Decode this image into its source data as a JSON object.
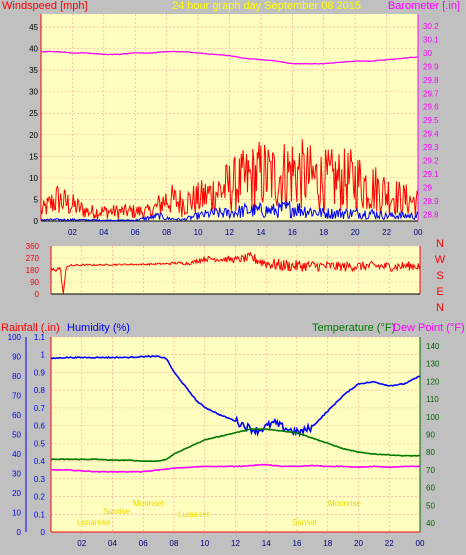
{
  "chart_data": [
    {
      "type": "line",
      "title": "24 hour graph day   September 08 2015",
      "y_left_label": "Windspeed [mph]",
      "y_right_label": "Barometer [.in]",
      "x_ticks": [
        "02",
        "04",
        "06",
        "08",
        "10",
        "12",
        "14",
        "16",
        "18",
        "20",
        "22",
        "00"
      ],
      "y_left_ticks": [
        "0",
        "5",
        "10",
        "15",
        "20",
        "25",
        "30",
        "35",
        "40",
        "45"
      ],
      "y_right_ticks": [
        "28.8",
        "28.9",
        "29",
        "29.1",
        "29.2",
        "29.3",
        "29.4",
        "29.5",
        "29.6",
        "29.7",
        "29.8",
        "29.9",
        "30",
        "30.1",
        "30.2"
      ],
      "x_range": [
        0,
        24
      ],
      "y_left_range": [
        0,
        48
      ],
      "y_right_range": [
        28.75,
        30.29
      ],
      "series": [
        {
          "axis": "left",
          "color": "#ff0000",
          "style": "noisy",
          "keyframes_x": [
            0,
            1,
            2,
            3,
            4,
            5,
            6,
            7,
            7.5,
            8,
            9,
            10,
            11,
            12,
            13,
            14,
            15,
            16,
            17,
            18,
            19,
            20,
            21,
            22,
            23,
            24
          ],
          "keyframes_amp": [
            3,
            7,
            5,
            3,
            3,
            3,
            3,
            3,
            5,
            7,
            6,
            7,
            9,
            11,
            13,
            15,
            14,
            16,
            14,
            13,
            13,
            13,
            11,
            9,
            7,
            6
          ]
        },
        {
          "axis": "left",
          "color": "#0000ff",
          "style": "noisy",
          "keyframes_x": [
            0,
            2,
            4,
            6,
            7.5,
            8,
            9,
            10,
            11,
            12,
            13,
            14,
            15,
            16,
            17,
            18,
            19,
            20,
            21,
            22,
            23,
            24
          ],
          "keyframes_amp": [
            0.5,
            0.5,
            0.3,
            0.3,
            2,
            1,
            0.5,
            2,
            3,
            3,
            4,
            4,
            4,
            5,
            4,
            3,
            3,
            3,
            3,
            2,
            2,
            2
          ]
        },
        {
          "axis": "right",
          "color": "#ff00ff",
          "style": "smooth",
          "x": [
            0,
            1,
            2,
            3,
            4,
            5,
            6,
            7,
            8,
            9,
            10,
            11,
            12,
            13,
            14,
            15,
            16,
            17,
            18,
            19,
            20,
            21,
            22,
            23,
            24
          ],
          "y": [
            30.01,
            30.01,
            30.0,
            30.0,
            29.99,
            29.99,
            30.0,
            30.0,
            30.01,
            30.01,
            30.0,
            29.99,
            29.98,
            29.96,
            29.95,
            29.94,
            29.92,
            29.92,
            29.92,
            29.93,
            29.94,
            29.94,
            29.95,
            29.96,
            29.97
          ]
        }
      ]
    },
    {
      "type": "line",
      "y_ticks": [
        "360",
        "270",
        "180",
        "90",
        "0"
      ],
      "y_right_labels": [
        "N",
        "W",
        "S",
        "E",
        "N"
      ],
      "x_range": [
        0,
        24
      ],
      "y_range": [
        0,
        360
      ],
      "series": [
        {
          "color": "#ff0000",
          "keyframes_x": [
            0,
            0.3,
            0.6,
            0.8,
            1,
            1.5,
            2,
            3,
            4,
            5,
            6,
            7,
            7.5,
            8,
            9,
            10,
            11,
            12,
            12.5,
            13,
            14,
            15,
            16,
            17,
            18,
            19,
            20,
            21,
            22,
            23,
            24
          ],
          "keyframes_y": [
            175,
            185,
            195,
            0,
            210,
            215,
            218,
            218,
            220,
            222,
            222,
            226,
            226,
            232,
            230,
            265,
            262,
            258,
            265,
            272,
            230,
            215,
            210,
            212,
            208,
            205,
            208,
            210,
            205,
            210,
            212
          ],
          "keyframes_amp": [
            15,
            20,
            10,
            0,
            10,
            8,
            6,
            6,
            6,
            6,
            6,
            6,
            8,
            10,
            12,
            20,
            22,
            25,
            30,
            40,
            45,
            45,
            45,
            40,
            40,
            35,
            35,
            35,
            35,
            35,
            35
          ]
        }
      ]
    },
    {
      "type": "line",
      "y_left_label_1": "Rainfall (.in)",
      "y_left_label_2": "Humidity (%)",
      "y_right_label_1": "Temperature (°F)",
      "y_right_label_2": "Dew Point (°F)",
      "x_ticks": [
        "02",
        "04",
        "06",
        "08",
        "10",
        "12",
        "14",
        "16",
        "18",
        "20",
        "22",
        "00"
      ],
      "y_left_ticks_humidity": [
        "0",
        "10",
        "20",
        "30",
        "40",
        "50",
        "60",
        "70",
        "80",
        "90",
        "100"
      ],
      "y_left_ticks_rain": [
        "0",
        "0.1",
        "0.2",
        "0.3",
        "0.4",
        "0.5",
        "0.6",
        "0.7",
        "0.8",
        "0.9",
        "1",
        "1.1"
      ],
      "y_right_ticks": [
        "40",
        "50",
        "60",
        "70",
        "80",
        "90",
        "100",
        "110",
        "120",
        "130",
        "140"
      ],
      "x_range": [
        0,
        24
      ],
      "humidity_range": [
        0,
        100
      ],
      "rain_range": [
        0,
        1.1
      ],
      "temp_range": [
        35,
        145
      ],
      "annotations": [
        "Lunarrise",
        "Sunrise",
        "Moonset",
        "Lunarset",
        "Sunset",
        "Moonrise"
      ],
      "series": [
        {
          "name": "Humidity (%)",
          "axis": "humidity",
          "color": "#0000ff",
          "x": [
            0,
            1,
            2,
            3,
            4,
            5,
            6,
            7,
            7.5,
            8,
            9,
            9.5,
            10,
            11,
            12,
            13,
            13.5,
            14,
            14.5,
            15,
            16,
            16.5,
            17,
            18,
            19,
            20,
            21,
            22,
            23,
            24
          ],
          "y": [
            89,
            89.5,
            89.5,
            89.5,
            89.5,
            89.5,
            90,
            90,
            89,
            82,
            72,
            67,
            64,
            60,
            57,
            53,
            52,
            54,
            56,
            54,
            51,
            52,
            54,
            62,
            70,
            76,
            77,
            75,
            76,
            80
          ]
        },
        {
          "name": "Temperature (°F)",
          "axis": "temp",
          "color": "#007700",
          "x": [
            0,
            1,
            2,
            3,
            4,
            5,
            6,
            7,
            7.5,
            8,
            9,
            10,
            11,
            12,
            13,
            14,
            15,
            16,
            17,
            18,
            19,
            20,
            21,
            22,
            23,
            24
          ],
          "y": [
            76,
            76,
            76,
            76,
            75.5,
            75.5,
            75,
            75,
            76,
            79,
            83,
            87,
            89,
            91,
            93,
            93,
            92,
            91,
            88,
            85,
            82,
            80,
            79,
            78.5,
            78,
            78
          ]
        },
        {
          "name": "Dew Point (°F)",
          "axis": "temp",
          "color": "#ff00ff",
          "x": [
            0,
            1,
            2,
            3,
            4,
            5,
            6,
            7,
            8,
            9,
            10,
            11,
            12,
            13,
            14,
            15,
            16,
            17,
            18,
            19,
            20,
            21,
            22,
            23,
            24
          ],
          "y": [
            70,
            70,
            69.5,
            69,
            69,
            69,
            69,
            70,
            71,
            71.5,
            72,
            72,
            72,
            72.5,
            73,
            72,
            72,
            72.5,
            72,
            72,
            71.5,
            72,
            71.5,
            72,
            72
          ]
        },
        {
          "name": "Rainfall (.in)",
          "axis": "rain",
          "color": "#ff0000",
          "x": [
            0,
            24
          ],
          "y": [
            0,
            0
          ]
        }
      ]
    }
  ]
}
